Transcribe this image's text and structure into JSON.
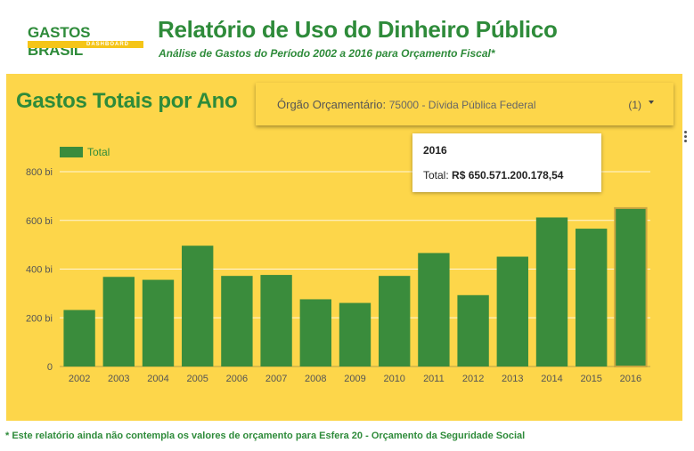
{
  "header": {
    "logo_text": "GASTOS BRASiL",
    "logo_sub": "DASHBOARD",
    "title": "Relatório de Uso do Dinheiro Público",
    "subtitle": "Análise de Gastos do Período 2002 a 2016 para Orçamento Fiscal*"
  },
  "panel": {
    "title": "Gastos Totais por Ano",
    "filter": {
      "label": "Órgão Orçamentário:",
      "value": "75000 - Dívida Pública Federal",
      "count": "(1)"
    }
  },
  "tooltip": {
    "year": "2016",
    "label": "Total:",
    "value": "R$ 650.571.200.178,54"
  },
  "footnote": "* Este relatório ainda não contempla os valores de orçamento para Esfera 20 - Orçamento da Seguridade Social",
  "colors": {
    "green": "#3a8c3c",
    "panel": "#fdd64a",
    "title_green": "#2e8b3a"
  },
  "chart_data": {
    "type": "bar",
    "categories": [
      "2002",
      "2003",
      "2004",
      "2005",
      "2006",
      "2007",
      "2008",
      "2009",
      "2010",
      "2011",
      "2012",
      "2013",
      "2014",
      "2015",
      "2016"
    ],
    "series": [
      {
        "name": "Total",
        "values": [
          232,
          368,
          356,
          496,
          372,
          376,
          276,
          261,
          372,
          466,
          293,
          451,
          612,
          566,
          650.57
        ]
      }
    ],
    "ylim": [
      0,
      800
    ],
    "yticks": [
      0,
      200,
      400,
      600,
      800
    ],
    "ytick_labels": [
      "0",
      "200 bi",
      "400 bi",
      "600 bi",
      "800 bi"
    ],
    "highlighted": "2016",
    "legend": "top-left",
    "grid": true
  }
}
